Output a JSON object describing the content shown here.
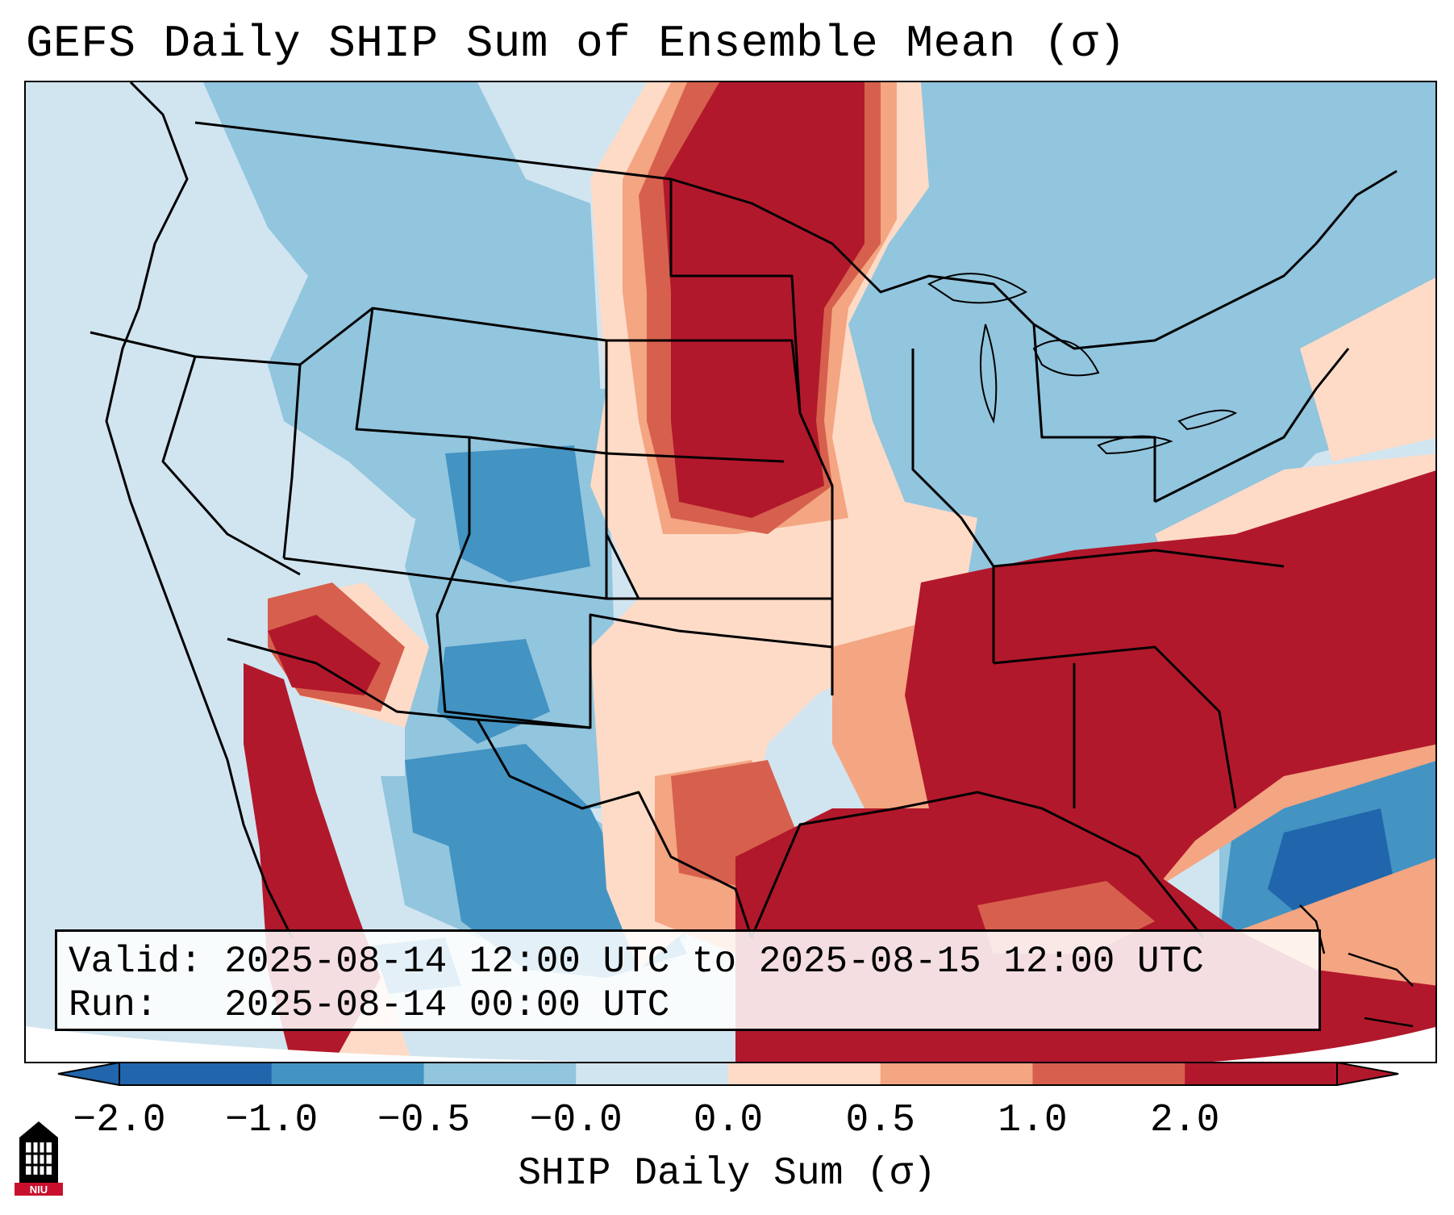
{
  "title": "GEFS Daily SHIP Sum of Ensemble Mean (σ)",
  "valid_line": "Valid: 2025-08-14 12:00 UTC to 2025-08-15 12:00 UTC",
  "run_line": "Run:   2025-08-14 00:00 UTC",
  "colorbar": {
    "label": "SHIP Daily Sum (σ)",
    "ticks": [
      "−2.0",
      "−1.0",
      "−0.5",
      "−0.0",
      "0.0",
      "0.5",
      "1.0",
      "2.0"
    ],
    "colors": [
      "#2166ac",
      "#4393c3",
      "#92c5de",
      "#d1e5f0",
      "#fddbc7",
      "#f4a582",
      "#d6604d",
      "#b2182b"
    ]
  },
  "logo_text": "NIU"
}
